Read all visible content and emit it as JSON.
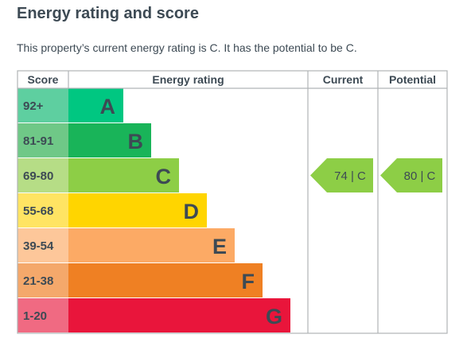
{
  "page": {
    "title": "Energy rating and score",
    "subtitle": "This property’s current energy rating is C. It has the potential to be C."
  },
  "chart_data": {
    "type": "table",
    "headers": {
      "score": "Score",
      "rating": "Energy rating",
      "current": "Current",
      "potential": "Potential"
    },
    "bands": [
      {
        "score": "92+",
        "letter": "A",
        "color": "#00c781",
        "score_bg": "#5ecfa0",
        "relative_length": 1
      },
      {
        "score": "81-91",
        "letter": "B",
        "color": "#19b459",
        "score_bg": "#6fc887",
        "relative_length": 2
      },
      {
        "score": "69-80",
        "letter": "C",
        "color": "#8dce46",
        "score_bg": "#b6dd86",
        "relative_length": 3
      },
      {
        "score": "55-68",
        "letter": "D",
        "color": "#ffd500",
        "score_bg": "#ffe463",
        "relative_length": 4
      },
      {
        "score": "39-54",
        "letter": "E",
        "color": "#fcaa65",
        "score_bg": "#fdc79a",
        "relative_length": 5
      },
      {
        "score": "21-38",
        "letter": "F",
        "color": "#ef8023",
        "score_bg": "#f4a86b",
        "relative_length": 6
      },
      {
        "score": "1-20",
        "letter": "G",
        "color": "#e9153b",
        "score_bg": "#f06a82",
        "relative_length": 7
      }
    ],
    "current": {
      "value": 74,
      "letter": "C",
      "label": "74 | C",
      "color": "#8dce46"
    },
    "potential": {
      "value": 80,
      "letter": "C",
      "label": "80 | C",
      "color": "#8dce46"
    },
    "letter_color": "#3d4a54",
    "grid_color": "#b1b4b6"
  }
}
